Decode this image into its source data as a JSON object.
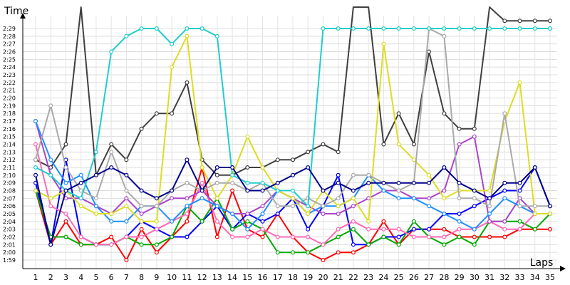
{
  "chart_data": {
    "type": "line",
    "title": "",
    "xlabel": "Laps",
    "ylabel": "Time",
    "x": [
      1,
      2,
      3,
      4,
      5,
      6,
      7,
      8,
      9,
      10,
      11,
      12,
      13,
      14,
      15,
      16,
      17,
      18,
      19,
      20,
      21,
      22,
      23,
      24,
      25,
      26,
      27,
      28,
      29,
      30,
      31,
      32,
      33,
      34,
      35
    ],
    "x_tick_labels": [
      "1",
      "2",
      "3",
      "4",
      "5",
      "6",
      "7",
      "8",
      "9",
      "10",
      "11",
      "12",
      "13",
      "14",
      "15",
      "16",
      "17",
      "18",
      "19",
      "20",
      "21",
      "22",
      "23",
      "24",
      "25",
      "26",
      "27",
      "28",
      "29",
      "30",
      "31",
      "32",
      "33",
      "34",
      "35"
    ],
    "y_tick_labels": [
      "1:59",
      "2:00",
      "2:01",
      "2:02",
      "2:03",
      "2:04",
      "2:05",
      "2:06",
      "2:07",
      "2:08",
      "2:09",
      "2:10",
      "2:11",
      "2:12",
      "2:13",
      "2:14",
      "2:15",
      "2:16",
      "2:17",
      "2:18",
      "2:19",
      "2:20",
      "2:21",
      "2:22",
      "2:23",
      "2:24",
      "2:25",
      "2:26",
      "2:27",
      "2:28",
      "2:29"
    ],
    "ylim_seconds": [
      119,
      149
    ],
    "xlim": [
      1,
      35
    ],
    "grid": true,
    "legend": "none",
    "series": [
      {
        "color": "#ff0000",
        "values": [
          128,
          121,
          124,
          121,
          121,
          122,
          119,
          123,
          120,
          122,
          124,
          131,
          122,
          128,
          123,
          122,
          125,
          122,
          120,
          119,
          120,
          120,
          121,
          124,
          121,
          123,
          123,
          123,
          122,
          122,
          122,
          122,
          123,
          123,
          123
        ]
      },
      {
        "color": "#0000ff",
        "values": [
          129,
          121,
          132,
          122,
          121,
          121,
          122,
          124,
          123,
          122,
          122,
          124,
          126,
          123,
          125,
          124,
          125,
          127,
          123,
          126,
          130,
          121,
          121,
          122,
          122,
          123,
          123,
          125,
          125,
          126,
          127,
          128,
          128,
          131,
          126
        ]
      },
      {
        "color": "#00aa00",
        "values": [
          128,
          122,
          122,
          121,
          121,
          121,
          122,
          121,
          121,
          122,
          126,
          124,
          127,
          123,
          124,
          123,
          120,
          120,
          120,
          121,
          122,
          123,
          121,
          122,
          121,
          124,
          122,
          121,
          122,
          121,
          124,
          124,
          124,
          123,
          125
        ]
      },
      {
        "color": "#404040",
        "values": [
          132,
          131,
          134,
          167,
          130,
          134,
          132,
          136,
          138,
          138,
          142,
          132,
          130,
          130,
          131,
          131,
          132,
          132,
          133,
          134,
          133,
          163,
          152,
          134,
          138,
          134,
          146,
          138,
          136,
          136,
          155,
          150,
          150,
          150,
          150
        ]
      },
      {
        "color": "#ff69b4",
        "values": [
          134,
          126,
          125,
          122,
          121,
          121,
          122,
          122,
          123,
          124,
          125,
          129,
          124,
          122,
          122,
          123,
          122,
          122,
          122,
          121,
          123,
          124,
          123,
          123,
          123,
          122,
          122,
          122,
          123,
          123,
          124,
          123,
          123,
          125,
          125
        ]
      },
      {
        "color": "#aa44cc",
        "values": [
          137,
          130,
          127,
          127,
          126,
          125,
          127,
          125,
          126,
          127,
          127,
          128,
          126,
          125,
          125,
          126,
          128,
          127,
          126,
          125,
          125,
          126,
          127,
          128,
          128,
          127,
          127,
          128,
          134,
          135,
          124,
          124,
          127,
          125,
          125
        ]
      },
      {
        "color": "#1e90ff",
        "values": [
          137,
          132,
          129,
          130,
          126,
          124,
          124,
          126,
          126,
          124,
          126,
          127,
          126,
          125,
          123,
          125,
          128,
          127,
          125,
          126,
          126,
          127,
          130,
          128,
          127,
          127,
          126,
          125,
          124,
          123,
          125,
          127,
          126,
          125,
          125
        ]
      },
      {
        "color": "#dddd22",
        "values": [
          128,
          127,
          128,
          126,
          125,
          125,
          126,
          124,
          124,
          144,
          148,
          131,
          127,
          130,
          135,
          131,
          128,
          127,
          125,
          128,
          126,
          127,
          124,
          147,
          134,
          132,
          130,
          127,
          128,
          128,
          128,
          137,
          142,
          125,
          125
        ]
      },
      {
        "color": "#aaaaaa",
        "values": [
          132,
          139,
          131,
          128,
          127,
          133,
          128,
          126,
          126,
          128,
          129,
          128,
          129,
          129,
          128,
          129,
          126,
          126,
          127,
          126,
          127,
          130,
          130,
          129,
          128,
          129,
          149,
          148,
          127,
          127,
          126,
          138,
          126,
          126,
          126
        ]
      },
      {
        "color": "#22cccc",
        "values": [
          131,
          130,
          128,
          127,
          133,
          146,
          148,
          149,
          149,
          147,
          149,
          149,
          148,
          130,
          129,
          129,
          128,
          128,
          126,
          149,
          149,
          149,
          149,
          149,
          149,
          149,
          149,
          149,
          149,
          149,
          149,
          149,
          149,
          149,
          149
        ]
      },
      {
        "color": "#00008b",
        "values": [
          130,
          121,
          128,
          129,
          130,
          131,
          130,
          128,
          127,
          128,
          132,
          128,
          131,
          131,
          128,
          128,
          129,
          130,
          131,
          128,
          129,
          128,
          129,
          129,
          129,
          129,
          129,
          131,
          129,
          128,
          127,
          129,
          129,
          131,
          126
        ]
      }
    ]
  }
}
